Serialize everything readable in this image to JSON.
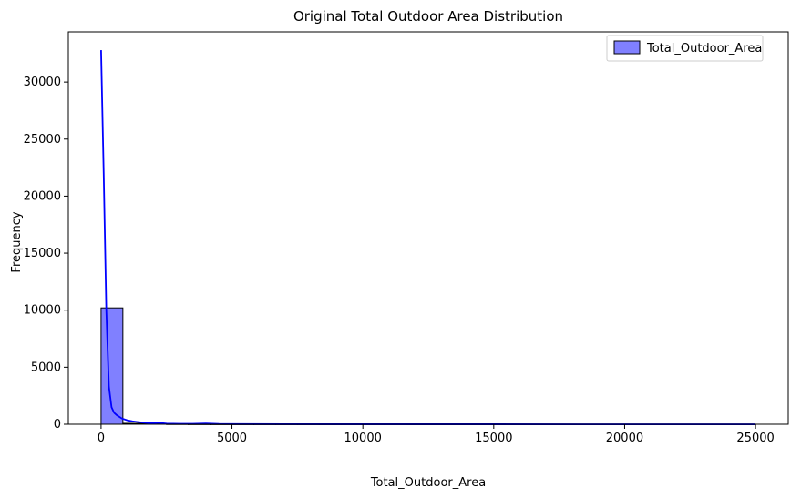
{
  "chart_data": {
    "type": "bar",
    "title": "Original Total Outdoor Area Distribution",
    "xlabel": "Total_Outdoor_Area",
    "ylabel": "Frequency",
    "xlim": [
      -1250,
      26250
    ],
    "ylim": [
      0,
      34400
    ],
    "xticks": [
      0,
      5000,
      10000,
      15000,
      20000,
      25000
    ],
    "yticks": [
      0,
      5000,
      10000,
      15000,
      20000,
      25000,
      30000
    ],
    "grid": false,
    "legend": {
      "position": "top-right",
      "entries": [
        "Total_Outdoor_Area"
      ]
    },
    "colors": {
      "bar_fill": "#8080ff",
      "bar_edge": "#000000",
      "kde_line": "#0000ff"
    },
    "histogram": {
      "bin_width": 833.33,
      "bins_start": 0,
      "counts": [
        10200,
        80,
        40,
        20,
        12,
        8,
        6,
        5,
        4,
        3,
        3,
        2,
        2,
        2,
        1,
        1,
        1,
        1,
        1,
        1,
        1,
        1,
        1,
        1,
        1,
        1,
        1,
        1,
        1,
        1
      ]
    },
    "kde": {
      "name": "Total_Outdoor_Area",
      "x": [
        0,
        100,
        200,
        300,
        400,
        500,
        600,
        700,
        800,
        1000,
        1200,
        1400,
        1600,
        1800,
        2000,
        2200,
        2500,
        3000,
        3500,
        4000,
        4500,
        5000,
        7000,
        10000,
        15000,
        20000,
        25000
      ],
      "y": [
        32800,
        22000,
        10000,
        3300,
        1500,
        1000,
        800,
        650,
        500,
        350,
        260,
        200,
        150,
        110,
        90,
        130,
        60,
        40,
        40,
        70,
        30,
        20,
        10,
        5,
        3,
        2,
        2
      ]
    }
  }
}
